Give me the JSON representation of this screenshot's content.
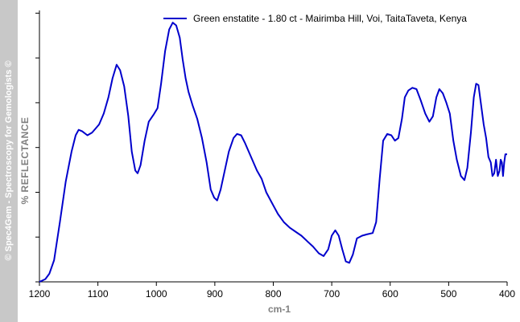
{
  "side_watermark": "© Spec4Gem - Spectroscopy for Gemologists ©",
  "colors": {
    "line": "#0000cc",
    "axis": "#000000",
    "band": "#c8c8c8",
    "label": "#808080"
  },
  "chart_data": {
    "type": "line",
    "title": "",
    "xlabel": "cm-1",
    "ylabel": "% REFLECTANCE",
    "xlim": [
      1200,
      400
    ],
    "x_ticks": [
      "1200",
      "1100",
      "1000",
      "900",
      "800",
      "700",
      "600",
      "500",
      "400"
    ],
    "y_ticks_labeled": false,
    "ylim": [
      0,
      100
    ],
    "grid": false,
    "legend_position": "top-right",
    "series": [
      {
        "name": "Green enstatite - 1.80 ct - Mairimba Hill, Voi, TaitaTaveta, Kenya",
        "color": "#0000cc",
        "points": [
          [
            1200,
            0
          ],
          [
            1190,
            1
          ],
          [
            1183,
            3
          ],
          [
            1175,
            8
          ],
          [
            1165,
            22
          ],
          [
            1155,
            37
          ],
          [
            1145,
            48
          ],
          [
            1138,
            54
          ],
          [
            1133,
            56
          ],
          [
            1127,
            55.5
          ],
          [
            1118,
            54
          ],
          [
            1110,
            55
          ],
          [
            1098,
            58
          ],
          [
            1090,
            62
          ],
          [
            1082,
            68
          ],
          [
            1075,
            75
          ],
          [
            1068,
            80
          ],
          [
            1062,
            78
          ],
          [
            1055,
            72
          ],
          [
            1048,
            61
          ],
          [
            1042,
            48
          ],
          [
            1036,
            41
          ],
          [
            1032,
            40
          ],
          [
            1027,
            43
          ],
          [
            1020,
            52
          ],
          [
            1013,
            59
          ],
          [
            1005,
            61.5
          ],
          [
            998,
            64
          ],
          [
            992,
            73
          ],
          [
            985,
            85
          ],
          [
            978,
            93
          ],
          [
            972,
            95.5
          ],
          [
            966,
            94.5
          ],
          [
            960,
            90
          ],
          [
            955,
            82
          ],
          [
            950,
            75
          ],
          [
            945,
            70
          ],
          [
            938,
            65
          ],
          [
            930,
            60
          ],
          [
            922,
            53
          ],
          [
            914,
            44
          ],
          [
            907,
            34
          ],
          [
            901,
            31
          ],
          [
            896,
            30
          ],
          [
            890,
            34
          ],
          [
            883,
            41
          ],
          [
            876,
            48
          ],
          [
            868,
            53
          ],
          [
            862,
            54.5
          ],
          [
            855,
            54
          ],
          [
            848,
            51
          ],
          [
            838,
            46
          ],
          [
            828,
            41
          ],
          [
            820,
            38
          ],
          [
            812,
            33
          ],
          [
            802,
            29
          ],
          [
            792,
            25
          ],
          [
            782,
            22
          ],
          [
            772,
            20
          ],
          [
            762,
            18.5
          ],
          [
            752,
            17
          ],
          [
            742,
            15
          ],
          [
            732,
            13
          ],
          [
            722,
            10.5
          ],
          [
            714,
            9.5
          ],
          [
            706,
            12
          ],
          [
            700,
            17
          ],
          [
            694,
            19
          ],
          [
            688,
            17
          ],
          [
            682,
            12
          ],
          [
            676,
            7.5
          ],
          [
            670,
            7
          ],
          [
            664,
            10
          ],
          [
            657,
            16
          ],
          [
            648,
            17
          ],
          [
            640,
            17.5
          ],
          [
            630,
            18
          ],
          [
            624,
            22
          ],
          [
            618,
            38
          ],
          [
            612,
            52
          ],
          [
            605,
            54.5
          ],
          [
            598,
            54
          ],
          [
            592,
            52
          ],
          [
            586,
            53
          ],
          [
            580,
            60
          ],
          [
            575,
            68
          ],
          [
            569,
            70.5
          ],
          [
            562,
            71.5
          ],
          [
            555,
            71
          ],
          [
            548,
            67
          ],
          [
            540,
            62
          ],
          [
            533,
            59
          ],
          [
            527,
            61
          ],
          [
            521,
            68
          ],
          [
            516,
            71
          ],
          [
            510,
            69.5
          ],
          [
            504,
            66
          ],
          [
            498,
            62
          ],
          [
            492,
            52
          ],
          [
            486,
            45
          ],
          [
            479,
            39
          ],
          [
            473,
            37.5
          ],
          [
            468,
            42
          ],
          [
            462,
            55
          ],
          [
            457,
            68
          ],
          [
            453,
            73
          ],
          [
            449,
            72.5
          ],
          [
            445,
            66
          ],
          [
            440,
            58
          ],
          [
            436,
            53
          ],
          [
            432,
            46
          ],
          [
            428,
            44
          ],
          [
            425,
            39
          ],
          [
            422,
            40
          ],
          [
            419,
            45
          ],
          [
            416,
            39
          ],
          [
            413,
            41
          ],
          [
            411,
            45
          ],
          [
            409,
            44
          ],
          [
            407,
            39
          ],
          [
            405,
            44
          ],
          [
            403,
            47
          ],
          [
            400,
            47
          ]
        ]
      }
    ]
  }
}
